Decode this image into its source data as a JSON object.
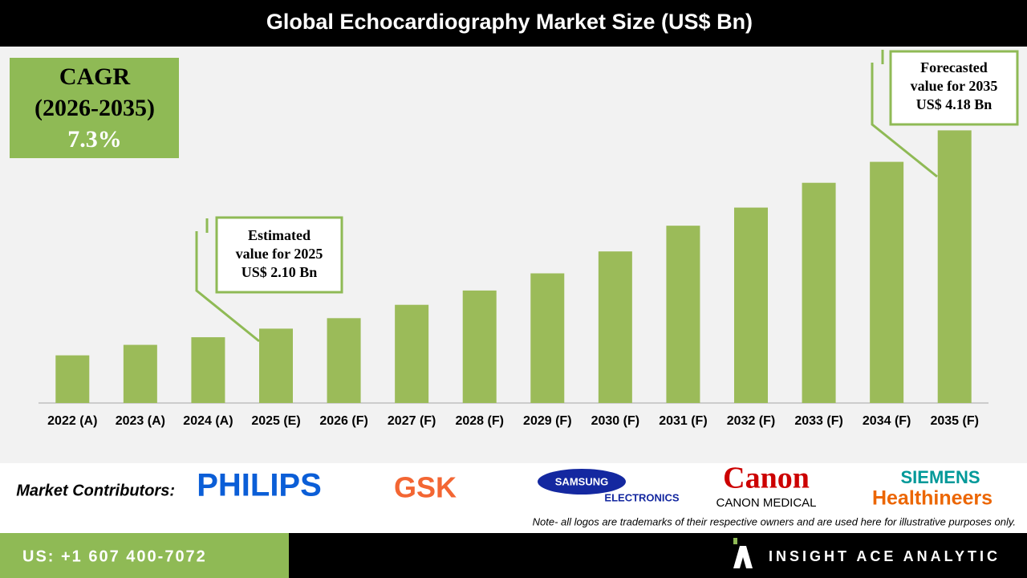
{
  "chart_data": {
    "type": "bar",
    "title": "Global Echocardiography Market Size (US$ Bn)",
    "categories": [
      "2022 (A)",
      "2023 (A)",
      "2024 (A)",
      "2025 (E)",
      "2026 (F)",
      "2027 (F)",
      "2028 (F)",
      "2029 (F)",
      "2030 (F)",
      "2031 (F)",
      "2032 (F)",
      "2033 (F)",
      "2034 (F)",
      "2035 (F)"
    ],
    "values": [
      1.82,
      1.93,
      2.01,
      2.1,
      2.21,
      2.35,
      2.5,
      2.68,
      2.91,
      3.18,
      3.37,
      3.63,
      3.85,
      4.18
    ],
    "color": "#9bbb59",
    "ylim": [
      1.32,
      4.5
    ],
    "cagr": [
      "CAGR",
      "(2026-2035)",
      "7.3%"
    ],
    "callouts": [
      [
        "Estimated",
        "value for 2025",
        "US$ 2.10 Bn"
      ],
      [
        "Forecasted",
        "value for 2035",
        "US$ 4.18 Bn"
      ]
    ]
  },
  "contributors": {
    "label": "Market Contributors:",
    "logos": [
      "PHILIPS",
      "GSK",
      "SAMSUNG",
      "ELECTRONICS",
      "Canon",
      "CANON MEDICAL",
      "SIEMENS",
      "Healthineers"
    ],
    "note": "Note- all logos are trademarks of their respective owners and are used here for illustrative purposes only."
  },
  "footer": {
    "phone": "US: +1 607 400-7072",
    "brand": "INSIGHT ACE ANALYTIC"
  }
}
